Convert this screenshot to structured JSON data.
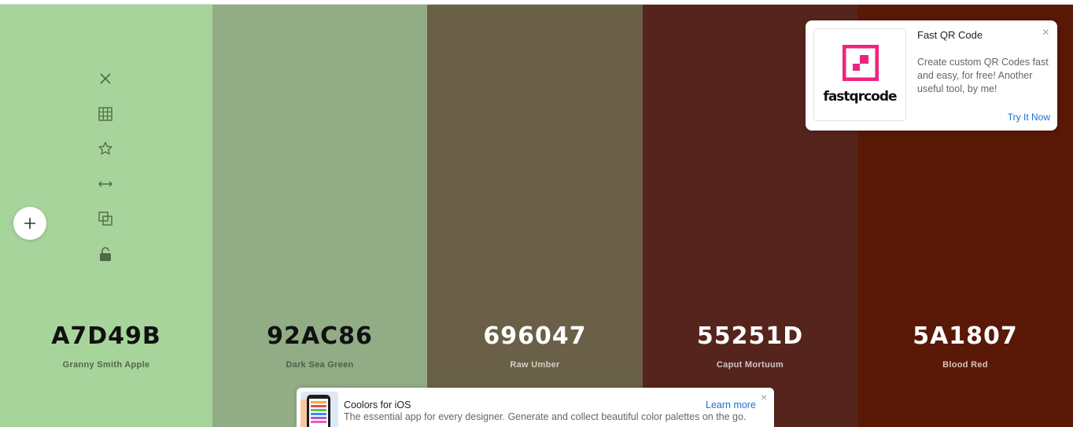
{
  "palette": {
    "colors": [
      {
        "hex": "A7D49B",
        "name": "Granny Smith Apple",
        "swatch": "#a7d49b",
        "text_color": "#111111",
        "name_color": "#4e6a46"
      },
      {
        "hex": "92AC86",
        "name": "Dark Sea Green",
        "swatch": "#92ac86",
        "text_color": "#111111",
        "name_color": "#4d5f45"
      },
      {
        "hex": "696047",
        "name": "Raw Umber",
        "swatch": "#696047",
        "text_color": "#ffffff",
        "name_color": "#d4cfc2"
      },
      {
        "hex": "55251D",
        "name": "Caput Mortuum",
        "swatch": "#55251d",
        "text_color": "#ffffff",
        "name_color": "#d5c4c0"
      },
      {
        "hex": "5A1807",
        "name": "Blood Red",
        "swatch": "#5a1807",
        "text_color": "#ffffff",
        "name_color": "#d8c2bc"
      }
    ],
    "tool_color": "#4e6a46",
    "tools": [
      {
        "icon": "close-icon"
      },
      {
        "icon": "grid-icon"
      },
      {
        "icon": "star-icon"
      },
      {
        "icon": "drag-horizontal-icon"
      },
      {
        "icon": "copy-icon"
      },
      {
        "icon": "lock-open-icon"
      }
    ],
    "add_icon": "plus-icon"
  },
  "ad": {
    "logo_text": "fastqrcode",
    "logo_color": "#f0237f",
    "title": "Fast QR Code",
    "description": "Create custom QR Codes fast and easy, for free! Another useful tool, by me!",
    "cta": "Try It Now",
    "close": "×"
  },
  "ios_banner": {
    "title": "Coolors for iOS",
    "description": "The essential app for every designer. Generate and collect beautiful color palettes on the go.",
    "link": "Learn more",
    "close": "×"
  }
}
